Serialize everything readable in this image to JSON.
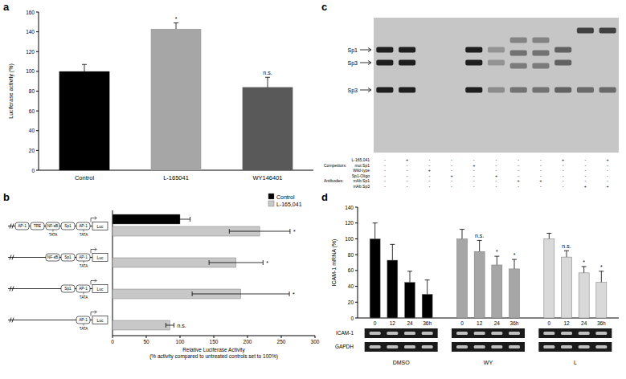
{
  "panel_labels": [
    "a",
    "b",
    "c",
    "d"
  ],
  "chart_data": [
    {
      "type": "bar",
      "ylabel": "Luciferase activity (%)",
      "categories": [
        "Control",
        "L-165041",
        "WY146401"
      ],
      "values": [
        100,
        143,
        84
      ],
      "errors": [
        7,
        6,
        10
      ],
      "colors": [
        "#000000",
        "#a6a6a6",
        "#595959"
      ],
      "annotations": [
        null,
        "*",
        "n.s."
      ],
      "ylim": [
        0,
        160
      ],
      "yticks": [
        0,
        20,
        40,
        60,
        80,
        100,
        120,
        140,
        160
      ]
    },
    {
      "type": "bar",
      "orientation": "horizontal",
      "categories": [
        null,
        null,
        null,
        null
      ],
      "series": [
        {
          "name": "Control",
          "color": "#000000",
          "values": [
            100,
            null,
            null,
            null
          ],
          "errors": [
            15,
            null,
            null,
            null
          ]
        },
        {
          "name": "L-165,041",
          "color": "#c8c8c8",
          "values": [
            218,
            183,
            190,
            85
          ],
          "errors": [
            45,
            40,
            72,
            6
          ],
          "annotations": [
            "*",
            "*",
            "*",
            "n.s."
          ]
        }
      ],
      "xlabel": "Relative Luciferase Activity (% activity compared to untreated controls set to 100%)",
      "xlim": [
        0,
        300
      ],
      "xticks": [
        0,
        50,
        100,
        150,
        200,
        250,
        300
      ],
      "legend": "top-right"
    },
    {
      "type": "bar",
      "ylabel": "ICAM-1 mRNA (%)",
      "categories": [
        "0",
        "12",
        "24",
        "36h",
        "0",
        "12",
        "24",
        "36h",
        "0",
        "12",
        "24",
        "36h"
      ],
      "groups": [
        "DMSO",
        "WY",
        "L"
      ],
      "values": [
        100,
        73,
        45,
        30,
        100,
        84,
        67,
        62,
        100,
        77,
        57,
        45
      ],
      "errors": [
        20,
        20,
        14,
        18,
        12,
        14,
        11,
        12,
        7,
        8,
        8,
        14
      ],
      "colors": [
        "#000000",
        "#000000",
        "#000000",
        "#000000",
        "#a6a6a6",
        "#a6a6a6",
        "#a6a6a6",
        "#a6a6a6",
        "#d9d9d9",
        "#d9d9d9",
        "#d9d9d9",
        "#d9d9d9"
      ],
      "annotations": [
        null,
        null,
        null,
        null,
        null,
        "n.s.",
        "*",
        "*",
        null,
        "n.s.",
        "*",
        "*"
      ],
      "blots": [
        "ICAM-1",
        "GAPDH"
      ],
      "ylim": [
        0,
        140
      ],
      "yticks": [
        0,
        20,
        40,
        60,
        80,
        100,
        120,
        140
      ]
    }
  ],
  "constructs": [
    {
      "sites": [
        "AP-1",
        "TRE",
        "NF-κB",
        "Sp1",
        "AP-1"
      ],
      "tata": [
        "TATA",
        "TATA"
      ],
      "reporter": "Luc"
    },
    {
      "sites": [
        "NF-κB",
        "Sp1",
        "AP-1"
      ],
      "tata": [
        "TATA"
      ],
      "reporter": "Luc"
    },
    {
      "sites": [
        "Sp1",
        "AP-1"
      ],
      "tata": [
        "TATA"
      ],
      "reporter": "Luc"
    },
    {
      "sites": [
        "AP-1"
      ],
      "tata": [
        "TATA"
      ],
      "reporter": "Luc"
    }
  ],
  "emsa": {
    "bands": [
      "Sp1",
      "Sp3",
      "Sp3"
    ],
    "rows": [
      {
        "label": "L-165,041",
        "signs": [
          "-",
          "+",
          "-",
          "-",
          "-",
          "-",
          "-",
          "-",
          "+",
          "-",
          "+"
        ]
      },
      {
        "group": "Competitors:",
        "label": "mut Sp1",
        "signs": [
          "-",
          "-",
          "-",
          "-",
          "+",
          "-",
          "-",
          "-",
          "-",
          "-",
          "-"
        ]
      },
      {
        "label": "Wild-type",
        "signs": [
          "-",
          "-",
          "+",
          "-",
          "-",
          "-",
          "-",
          "-",
          "-",
          "-",
          "-"
        ]
      },
      {
        "label": "Sp1-Oligo",
        "signs": [
          "-",
          "-",
          "-",
          "+",
          "-",
          "+",
          "-",
          "-",
          "-",
          "-",
          "-"
        ]
      },
      {
        "group": "Antibodies:",
        "label": "mAb Sp1",
        "signs": [
          "-",
          "-",
          "-",
          "-",
          "-",
          "-",
          "+",
          "+",
          "-",
          "-",
          "-"
        ]
      },
      {
        "label": "mAb Sp3",
        "signs": [
          "-",
          "-",
          "-",
          "-",
          "-",
          "-",
          "-",
          "-",
          "-",
          "+",
          "+"
        ]
      }
    ]
  }
}
